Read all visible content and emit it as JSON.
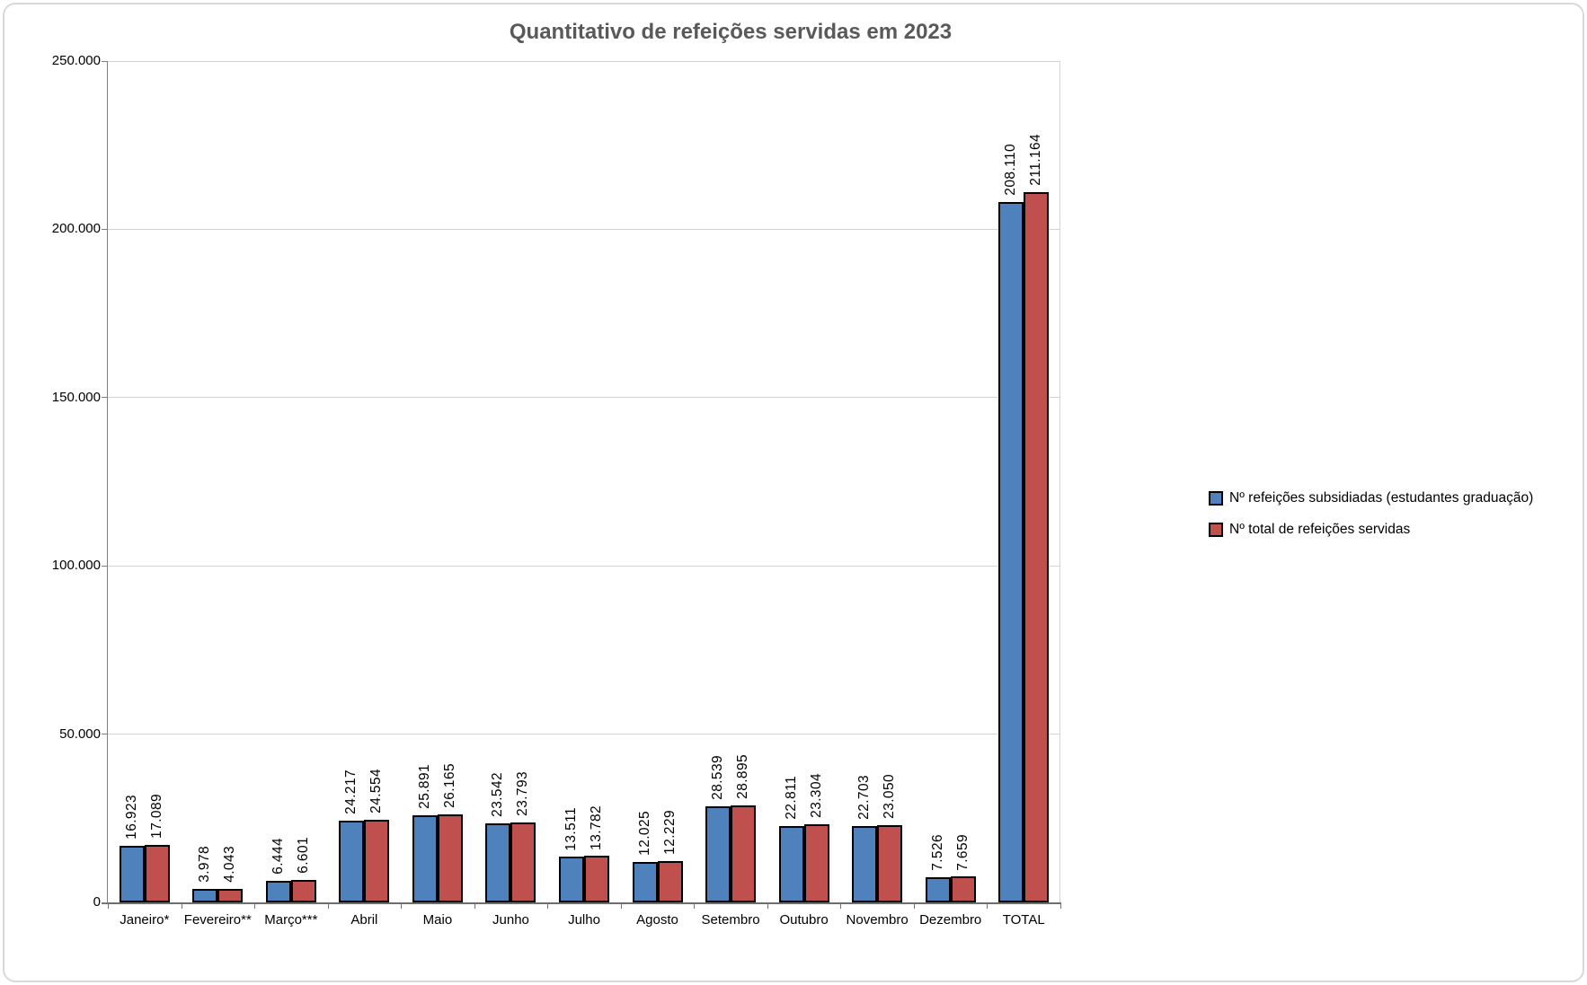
{
  "chart_data": {
    "type": "bar",
    "title": "Quantitativo de refeições servidas em 2023",
    "categories": [
      "Janeiro*",
      "Fevereiro**",
      "Março***",
      "Abril",
      "Maio",
      "Junho",
      "Julho",
      "Agosto",
      "Setembro",
      "Outubro",
      "Novembro",
      "Dezembro",
      "TOTAL"
    ],
    "series": [
      {
        "name": "Nº refeições subsidiadas (estudantes graduação)",
        "color": "#4f81bd",
        "values": [
          16923,
          3978,
          6444,
          24217,
          25891,
          23542,
          13511,
          12025,
          28539,
          22811,
          22703,
          7526,
          208110
        ],
        "labels": [
          "16.923",
          "3.978",
          "6.444",
          "24.217",
          "25.891",
          "23.542",
          "13.511",
          "12.025",
          "28.539",
          "22.811",
          "22.703",
          "7.526",
          "208.110"
        ]
      },
      {
        "name": "Nº total de refeições servidas",
        "color": "#c0504d",
        "values": [
          17089,
          4043,
          6601,
          24554,
          26165,
          23793,
          13782,
          12229,
          28895,
          23304,
          23050,
          7659,
          211164
        ],
        "labels": [
          "17.089",
          "4.043",
          "6.601",
          "24.554",
          "26.165",
          "23.793",
          "13.782",
          "12.229",
          "28.895",
          "23.304",
          "23.050",
          "7.659",
          "211.164"
        ]
      }
    ],
    "ylim": [
      0,
      250000
    ],
    "ytick_step": 50000,
    "ytick_labels": [
      "0",
      "50.000",
      "100.000",
      "150.000",
      "200.000",
      "250.000"
    ],
    "grid": true,
    "legend_position": "right",
    "bar_border_color": "#000000",
    "data_label_rotation": 90
  }
}
